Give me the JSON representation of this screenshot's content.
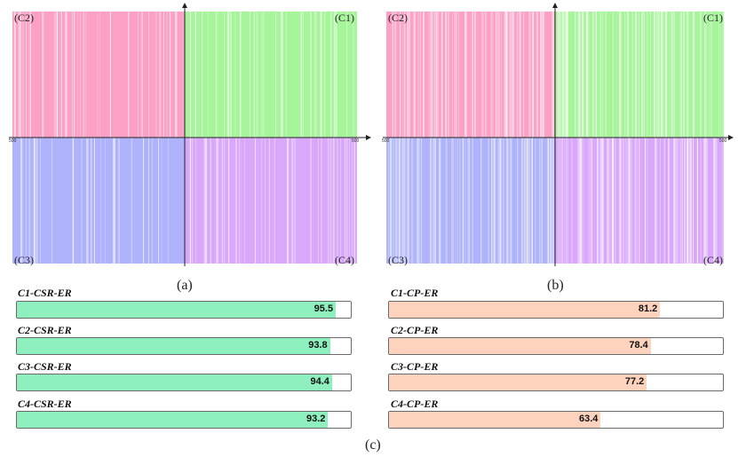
{
  "colors": {
    "c1": "#a6f59a",
    "c2": "#fca0c6",
    "c3": "#aeb3fb",
    "c4": "#d9a8fa",
    "bar_green": "#8ff0bf",
    "bar_orange": "#fdd3bd"
  },
  "panel_a": {
    "caption": "(a)",
    "quadrant_labels": {
      "c1": "(C1)",
      "c2": "(C2)",
      "c3": "(C3)",
      "c4": "(C4)"
    },
    "axis_ticks": {
      "left": "500",
      "right": "500"
    },
    "white_line_density": 0.22
  },
  "panel_b": {
    "caption": "(b)",
    "quadrant_labels": {
      "c1": "(C1)",
      "c2": "(C2)",
      "c3": "(C3)",
      "c4": "(C4)"
    },
    "axis_ticks": {
      "left": "500",
      "right": "500"
    },
    "white_line_density": 0.45
  },
  "panel_c_caption": "(c)",
  "csr_bars": [
    {
      "label": "C1-CSR-ER",
      "value": "95.5",
      "percent": 95.5
    },
    {
      "label": "C2-CSR-ER",
      "value": "93.8",
      "percent": 93.8
    },
    {
      "label": "C3-CSR-ER",
      "value": "94.4",
      "percent": 94.4
    },
    {
      "label": "C4-CSR-ER",
      "value": "93.2",
      "percent": 93.2
    }
  ],
  "cp_bars": [
    {
      "label": "C1-CP-ER",
      "value": "81.2",
      "percent": 81.2
    },
    {
      "label": "C2-CP-ER",
      "value": "78.4",
      "percent": 78.4
    },
    {
      "label": "C3-CP-ER",
      "value": "77.2",
      "percent": 77.2
    },
    {
      "label": "C4-CP-ER",
      "value": "63.4",
      "percent": 63.4
    }
  ]
}
